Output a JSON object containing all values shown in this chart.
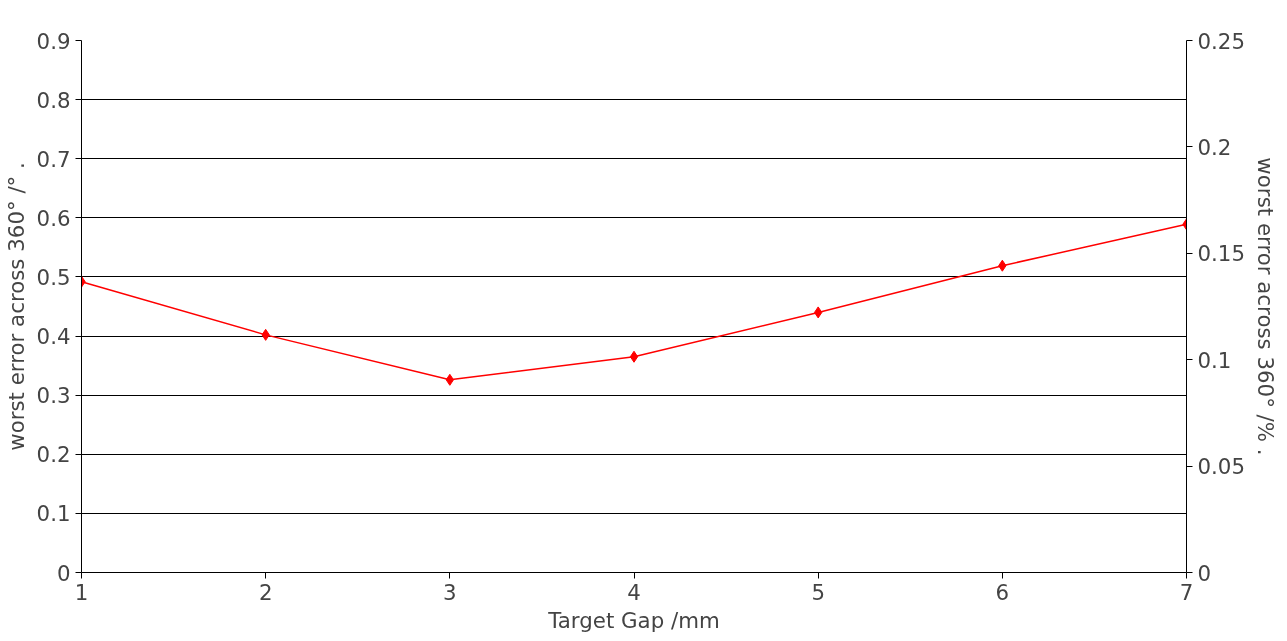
{
  "chart_data": {
    "type": "line",
    "xlabel": "Target Gap /mm",
    "ylabel": "worst error across 360° /° .",
    "y2label": "worst error across 360° /% .",
    "x": [
      1,
      2,
      3,
      4,
      5,
      6,
      7
    ],
    "series": [
      {
        "color": "#ff0000",
        "values": [
          0.492,
          0.402,
          0.326,
          0.365,
          0.44,
          0.519,
          0.589
        ]
      }
    ],
    "xlim": [
      1,
      7
    ],
    "xticks": [
      1,
      2,
      3,
      4,
      5,
      6,
      7
    ],
    "ylim": [
      0,
      0.9
    ],
    "yticks": [
      0,
      0.1,
      0.2,
      0.3,
      0.4,
      0.5,
      0.6,
      0.7,
      0.8,
      0.9
    ],
    "y2lim": [
      0,
      0.25
    ],
    "y2ticks": [
      0,
      0.05,
      0.1,
      0.15,
      0.2,
      0.25
    ],
    "grid": "y",
    "marker": "diamond",
    "line_style": "solid"
  }
}
